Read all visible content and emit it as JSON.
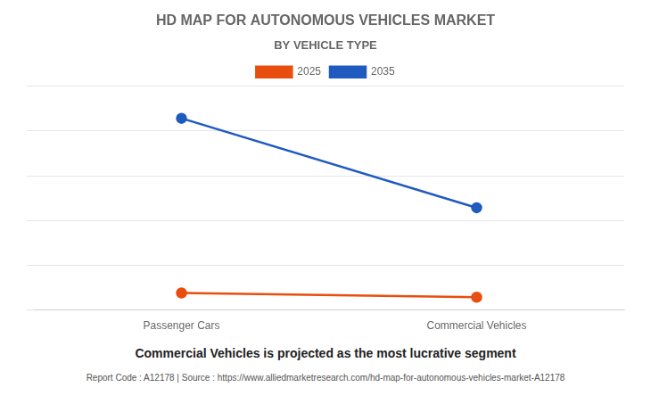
{
  "chart_data": {
    "type": "line",
    "title": "HD MAP FOR AUTONOMOUS VEHICLES MARKET",
    "subtitle": "BY VEHICLE TYPE",
    "categories": [
      "Passenger Cars",
      "Commercial Vehicles"
    ],
    "series": [
      {
        "name": "2025",
        "color": "#e84e0f",
        "values": [
          0.08,
          0.06
        ]
      },
      {
        "name": "2035",
        "color": "#1f5bbf",
        "values": [
          0.9,
          0.48
        ]
      }
    ],
    "ylim": [
      0,
      1.05
    ],
    "yticks": [
      0,
      0.21,
      0.42,
      0.63,
      0.84,
      1.05
    ],
    "grid": true,
    "tick_labels": "x",
    "legend": "top",
    "marker": "circle",
    "annotations": [
      "Commercial Vehicles is projected as the most lucrative segment",
      "Report Code : A12178  |  Source : https://www.alliedmarketresearch.com/hd-map-for-autonomous-vehicles-market-A12178"
    ]
  }
}
